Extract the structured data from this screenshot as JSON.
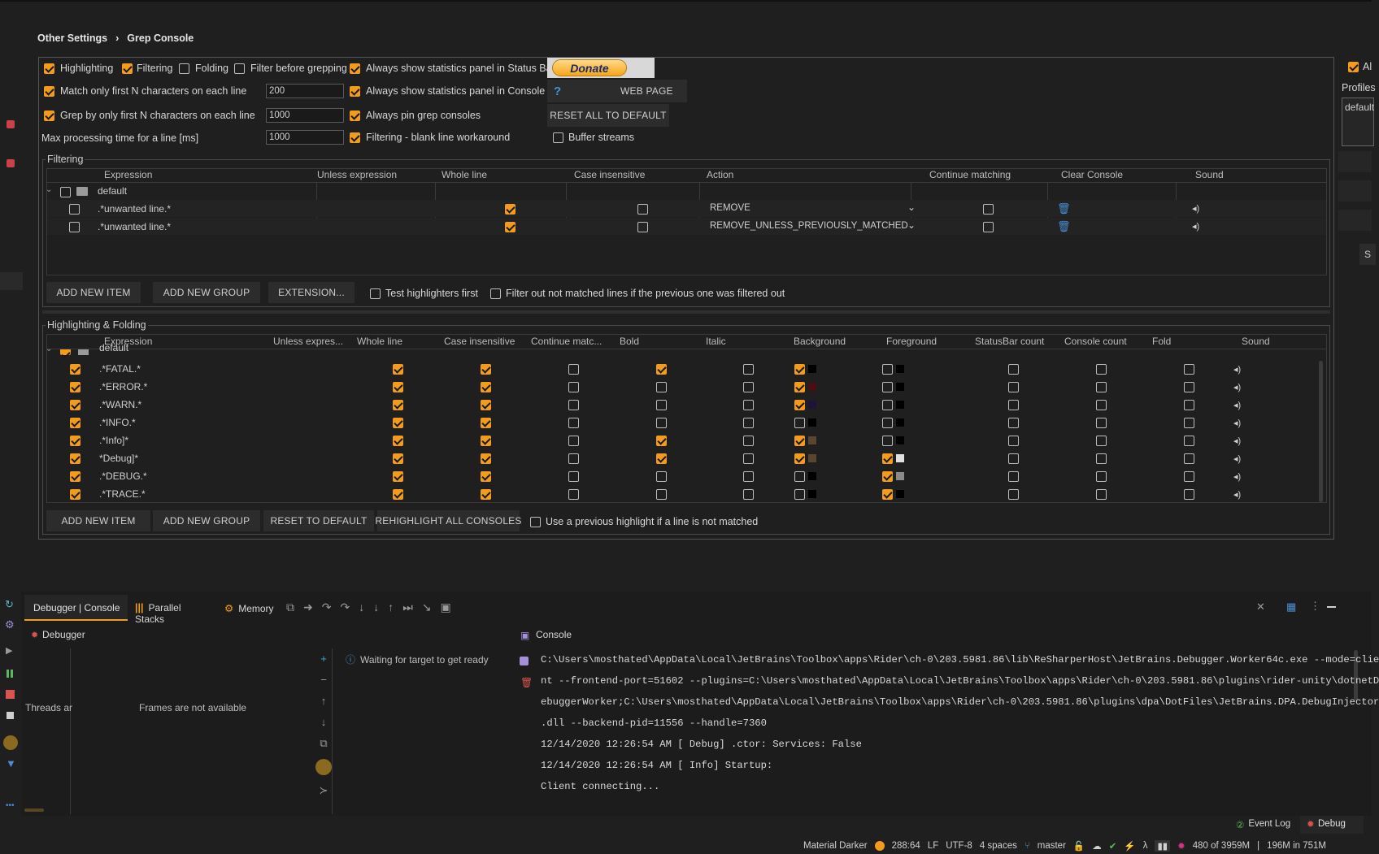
{
  "breadcrumb": {
    "parent": "Other Settings",
    "sep": "›",
    "current": "Grep Console"
  },
  "options": {
    "highlighting": "Highlighting",
    "filtering": "Filtering",
    "folding": "Folding",
    "filter_before": "Filter before grepping",
    "stats_statusbar": "Always show statistics panel in Status Bar",
    "match_first_n": "Match only first N characters on each line",
    "match_first_n_value": "200",
    "stats_console": "Always show statistics panel in Console",
    "grep_first_n": "Grep by only first N characters on each line",
    "grep_first_n_value": "1000",
    "pin_consoles": "Always pin grep consoles",
    "max_time": "Max processing time for a line [ms]",
    "max_time_value": "1000",
    "blank_line": "Filtering - blank line workaround",
    "buffer": "Buffer streams"
  },
  "donate": "Donate",
  "help": "?",
  "web_page": "WEB PAGE",
  "reset_all": "RESET ALL TO DEFAULT",
  "right_panel": {
    "all": "Al",
    "profiles": "Profiles",
    "profile_value": "default",
    "s": "S"
  },
  "filtering": {
    "title": "Filtering",
    "headers": [
      "Expression",
      "Unless expression",
      "Whole line",
      "Case insensitive",
      "Action",
      "Continue matching",
      "Clear Console",
      "Sound"
    ],
    "group": "default",
    "rows": [
      {
        "expr": ".*unwanted line.*",
        "action": "REMOVE"
      },
      {
        "expr": ".*unwanted line.*",
        "action": "REMOVE_UNLESS_PREVIOUSLY_MATCHED"
      }
    ],
    "add_item": "ADD NEW ITEM",
    "add_group": "ADD NEW GROUP",
    "extension": "EXTENSION...",
    "test_first": "Test highlighters first",
    "filter_out": "Filter out not matched lines if the previous one was filtered out"
  },
  "highlighting": {
    "title": "Highlighting & Folding",
    "headers": [
      "Expression",
      "Unless expres...",
      "Whole line",
      "Case insensitive",
      "Continue matc...",
      "Bold",
      "Italic",
      "Background",
      "Foreground",
      "StatusBar count",
      "Console count",
      "Fold",
      "Sound"
    ],
    "group": "default",
    "rows": [
      {
        "expr": ".*FATAL.*",
        "bold": true,
        "bg": true,
        "bgc": "#000000",
        "fg": false,
        "fgc": "#000000"
      },
      {
        "expr": ".*ERROR.*",
        "bold": false,
        "bg": true,
        "bgc": "#4a0f12",
        "fg": false,
        "fgc": "#000000"
      },
      {
        "expr": ".*WARN.*",
        "bold": false,
        "bg": true,
        "bgc": "#1e1338",
        "fg": false,
        "fgc": "#000000"
      },
      {
        "expr": ".*INFO.*",
        "bold": false,
        "bg": false,
        "bgc": "#000000",
        "fg": false,
        "fgc": "#000000"
      },
      {
        "expr": ".*Info]*",
        "bold": true,
        "bg": true,
        "bgc": "#5a4530",
        "fg": false,
        "fgc": "#000000"
      },
      {
        "expr": "*Debug]*",
        "bold": true,
        "bg": true,
        "bgc": "#5a4530",
        "fg": true,
        "fgc": "#e0e0e0"
      },
      {
        "expr": ".*DEBUG.*",
        "bold": false,
        "bg": false,
        "bgc": "#000000",
        "fg": true,
        "fgc": "#8a8a8a"
      },
      {
        "expr": ".*TRACE.*",
        "bold": false,
        "bg": false,
        "bgc": "#000000",
        "fg": true,
        "fgc": "#000000"
      }
    ],
    "add_item": "ADD NEW ITEM",
    "add_group": "ADD NEW GROUP",
    "reset": "RESET TO DEFAULT",
    "rehighlight": "REHIGHLIGHT ALL CONSOLES",
    "use_prev": "Use a previous highlight if a line is not matched"
  },
  "debug": {
    "tabs": [
      "Debugger | Console",
      "Parallel Stacks",
      "Memory"
    ],
    "debugger_label": "Debugger",
    "console_label": "Console",
    "threads": "Threads ar",
    "frames": "Frames are not available",
    "waiting": "Waiting for target to get ready",
    "console_lines": [
      "C:\\Users\\mosthated\\AppData\\Local\\JetBrains\\Toolbox\\apps\\Rider\\ch-0\\203.5981.86\\lib\\ReSharperHost\\JetBrains.Debugger.Worker64c.exe --mode=clie",
      "nt --frontend-port=51602 --plugins=C:\\Users\\mosthated\\AppData\\Local\\JetBrains\\Toolbox\\apps\\Rider\\ch-0\\203.5981.86\\plugins\\rider-unity\\dotnetD",
      "ebuggerWorker;C:\\Users\\mosthated\\AppData\\Local\\JetBrains\\Toolbox\\apps\\Rider\\ch-0\\203.5981.86\\plugins\\dpa\\DotFiles\\JetBrains.DPA.DebugInjector",
      ".dll --backend-pid=11556 --handle=7360",
      "12/14/2020 12:26:54 AM [   Debug] .ctor: Services: False",
      "12/14/2020 12:26:54 AM [    Info] Startup:",
      "Client connecting..."
    ]
  },
  "status": {
    "event_log": "Event Log",
    "debug": "Debug",
    "theme": "Material Darker",
    "pos": "288:64",
    "lf": "LF",
    "enc": "UTF-8",
    "indent": "4 spaces",
    "branch": "master",
    "mem1": "480 of 3959M",
    "mem2": "196M in 751M"
  },
  "colors": {
    "accent": "#f29b1d",
    "bg": "#1f1f1f"
  }
}
